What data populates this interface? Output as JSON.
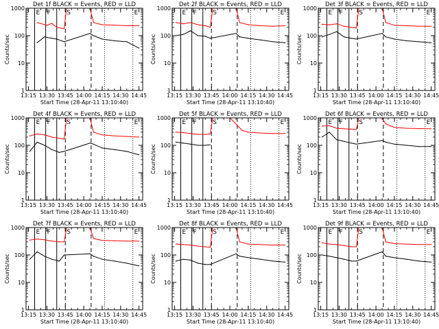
{
  "figure": {
    "ylabel": "Counts/sec",
    "xlabel": "Start Time (28-Apr-11 13:10:40)",
    "tick_labels": [
      "13:15",
      "13:30",
      "13:45",
      "14:00",
      "14:15",
      "14:30",
      "14:45"
    ],
    "y_tick_labels": [
      "1",
      "10",
      "100",
      "1000"
    ],
    "marker_labels": [
      "E",
      "F",
      "S",
      "E"
    ],
    "colors": {
      "events": "#000000",
      "lld": "#ff0000",
      "axes": "#000000"
    }
  },
  "chart_data": [
    {
      "type": "line",
      "title": "Det 1f BLACK = Events, RED = LLD",
      "xlabel": "Start Time (28-Apr-11 13:10:40)",
      "ylabel": "Counts/sec",
      "x_range": [
        "13:13",
        "14:48"
      ],
      "ylim": [
        1,
        1000
      ],
      "y_scale": "log",
      "markers": {
        "solid": [
          "13:20",
          "13:29",
          "13:38"
        ],
        "dashed": [
          "13:45",
          "14:06"
        ],
        "dotted": [
          "14:17",
          "14:40"
        ]
      },
      "gaps": [
        [
          "13:47",
          "14:05"
        ]
      ],
      "series": [
        {
          "key": "events",
          "color": "#000000",
          "x": [
            "13:22",
            "13:28",
            "13:34",
            "13:38",
            "13:44",
            "14:05",
            "14:08",
            "14:15",
            "14:25",
            "14:35",
            "14:45"
          ],
          "y": [
            55,
            90,
            80,
            75,
            60,
            120,
            100,
            75,
            65,
            60,
            35
          ]
        },
        {
          "key": "lld",
          "color": "#ff0000",
          "x": [
            "13:22",
            "13:30",
            "13:34",
            "13:38",
            "13:44",
            "13:46",
            "14:05",
            "14:08",
            "14:15",
            "14:25",
            "14:35",
            "14:45"
          ],
          "y": [
            300,
            240,
            280,
            200,
            180,
            1000,
            1000,
            300,
            250,
            240,
            230,
            230
          ]
        }
      ]
    },
    {
      "type": "line",
      "title": "Det 2f BLACK = Events, RED = LLD",
      "xlabel": "Start Time (28-Apr-11 13:10:40)",
      "ylabel": "Counts/sec",
      "x_range": [
        "13:13",
        "14:48"
      ],
      "ylim": [
        1,
        1000
      ],
      "y_scale": "log",
      "markers": {
        "solid": [
          "13:20",
          "13:29",
          "13:38"
        ],
        "dashed": [
          "13:45",
          "14:06"
        ],
        "dotted": [
          "14:17",
          "14:40"
        ]
      },
      "gaps": [
        [
          "13:47",
          "14:05"
        ]
      ],
      "series": [
        {
          "key": "events",
          "color": "#000000",
          "x": [
            "13:16",
            "13:22",
            "13:28",
            "13:34",
            "13:40",
            "13:44",
            "14:05",
            "14:08",
            "14:15",
            "14:25",
            "14:35",
            "14:45"
          ],
          "y": [
            100,
            110,
            150,
            100,
            95,
            80,
            120,
            90,
            80,
            70,
            60,
            55
          ]
        },
        {
          "key": "lld",
          "color": "#ff0000",
          "x": [
            "13:16",
            "13:22",
            "13:28",
            "13:34",
            "13:40",
            "13:44",
            "13:46",
            "14:05",
            "14:08",
            "14:15",
            "14:25",
            "14:35",
            "14:45"
          ],
          "y": [
            300,
            270,
            300,
            250,
            230,
            200,
            1000,
            1000,
            300,
            250,
            230,
            220,
            230
          ]
        }
      ]
    },
    {
      "type": "line",
      "title": "Det 3f BLACK = Events, RED = LLD",
      "xlabel": "Start Time (28-Apr-11 13:10:40)",
      "ylabel": "Counts/sec",
      "x_range": [
        "13:13",
        "14:48"
      ],
      "ylim": [
        1,
        1000
      ],
      "y_scale": "log",
      "markers": {
        "solid": [
          "13:20",
          "13:29",
          "13:38"
        ],
        "dashed": [
          "13:45",
          "14:06"
        ],
        "dotted": [
          "14:17",
          "14:40"
        ]
      },
      "gaps": [
        [
          "13:47",
          "14:05"
        ]
      ],
      "series": [
        {
          "key": "events",
          "color": "#000000",
          "x": [
            "13:16",
            "13:22",
            "13:28",
            "13:34",
            "13:40",
            "13:44",
            "14:05",
            "14:08",
            "14:15",
            "14:25",
            "14:35",
            "14:45"
          ],
          "y": [
            90,
            110,
            140,
            90,
            80,
            75,
            120,
            90,
            75,
            65,
            60,
            55
          ]
        },
        {
          "key": "lld",
          "color": "#ff0000",
          "x": [
            "13:16",
            "13:22",
            "13:28",
            "13:34",
            "13:40",
            "13:44",
            "13:46",
            "14:05",
            "14:08",
            "14:15",
            "14:25",
            "14:35",
            "14:45"
          ],
          "y": [
            260,
            250,
            270,
            220,
            200,
            190,
            1000,
            1000,
            300,
            240,
            230,
            220,
            220
          ]
        }
      ]
    },
    {
      "type": "line",
      "title": "Det 4f BLACK = Events, RED = LLD",
      "xlabel": "Start Time (28-Apr-11 13:10:40)",
      "ylabel": "Counts/sec",
      "x_range": [
        "13:13",
        "14:48"
      ],
      "ylim": [
        1,
        1000
      ],
      "y_scale": "log",
      "markers": {
        "solid": [
          "13:20",
          "13:29",
          "13:38"
        ],
        "dashed": [
          "13:45",
          "14:06"
        ],
        "dotted": [
          "14:17",
          "14:40"
        ]
      },
      "gaps": [
        [
          "13:47",
          "14:05"
        ]
      ],
      "series": [
        {
          "key": "events",
          "color": "#000000",
          "x": [
            "13:16",
            "13:22",
            "13:28",
            "13:34",
            "13:40",
            "13:44",
            "14:05",
            "14:08",
            "14:15",
            "14:25",
            "14:35",
            "14:45"
          ],
          "y": [
            60,
            130,
            100,
            70,
            55,
            60,
            120,
            110,
            80,
            70,
            60,
            45
          ]
        },
        {
          "key": "lld",
          "color": "#ff0000",
          "x": [
            "13:16",
            "13:22",
            "13:28",
            "13:34",
            "13:40",
            "13:44",
            "13:46",
            "14:05",
            "14:08",
            "14:15",
            "14:25",
            "14:35",
            "14:45"
          ],
          "y": [
            220,
            260,
            240,
            200,
            180,
            170,
            1000,
            1000,
            300,
            240,
            220,
            210,
            200
          ]
        }
      ]
    },
    {
      "type": "line",
      "title": "Det 5f BLACK = Events, RED = LLD",
      "xlabel": "Start Time (28-Apr-11 13:10:40)",
      "ylabel": "Counts/sec",
      "x_range": [
        "13:13",
        "14:48"
      ],
      "ylim": [
        1,
        1000
      ],
      "y_scale": "log",
      "markers": {
        "solid": [
          "13:20",
          "13:29",
          "13:38"
        ],
        "dashed": [
          "13:45",
          "14:06"
        ],
        "dotted": [
          "14:17",
          "14:40"
        ]
      },
      "gaps": [],
      "series": [
        {
          "key": "events",
          "color": "#000000",
          "x": [
            "13:16",
            "13:22",
            "13:28",
            "13:34",
            "13:40",
            "13:44"
          ],
          "y": [
            130,
            120,
            110,
            100,
            100,
            105
          ]
        },
        {
          "key": "lld",
          "color": "#ff0000",
          "x": [
            "13:16",
            "13:22",
            "13:28",
            "13:34",
            "13:40",
            "13:44",
            "13:46",
            "14:00",
            "14:05",
            "14:10",
            "14:15",
            "14:25",
            "14:35",
            "14:45"
          ],
          "y": [
            300,
            290,
            270,
            250,
            250,
            260,
            1000,
            1000,
            600,
            350,
            300,
            280,
            270,
            270
          ]
        }
      ]
    },
    {
      "type": "line",
      "title": "Det 6f BLACK = Events, RED = LLD",
      "xlabel": "Start Time (28-Apr-11 13:10:40)",
      "ylabel": "Counts/sec",
      "x_range": [
        "13:13",
        "14:48"
      ],
      "ylim": [
        1,
        1000
      ],
      "y_scale": "log",
      "markers": {
        "solid": [
          "13:20",
          "13:29",
          "13:38"
        ],
        "dashed": [
          "13:45",
          "14:06"
        ],
        "dotted": [
          "14:17",
          "14:40"
        ]
      },
      "gaps": [
        [
          "13:47",
          "14:05"
        ]
      ],
      "series": [
        {
          "key": "events",
          "color": "#000000",
          "x": [
            "13:16",
            "13:22",
            "13:28",
            "13:34",
            "13:40",
            "13:44",
            "14:05",
            "14:08",
            "14:15",
            "14:25",
            "14:35",
            "14:45"
          ],
          "y": [
            200,
            300,
            160,
            140,
            120,
            110,
            150,
            130,
            110,
            100,
            90,
            90
          ]
        },
        {
          "key": "lld",
          "color": "#ff0000",
          "x": [
            "13:16",
            "13:22",
            "13:28",
            "13:34",
            "13:40",
            "13:44",
            "13:46",
            "14:05",
            "14:08",
            "14:15",
            "14:25",
            "14:35",
            "14:45"
          ],
          "y": [
            500,
            520,
            420,
            400,
            390,
            380,
            1000,
            1000,
            600,
            450,
            420,
            410,
            400
          ]
        }
      ]
    },
    {
      "type": "line",
      "title": "Det 7f BLACK = Events, RED = LLD",
      "xlabel": "Start Time (28-Apr-11 13:10:40)",
      "ylabel": "Counts/sec",
      "x_range": [
        "13:13",
        "14:48"
      ],
      "ylim": [
        1,
        1000
      ],
      "y_scale": "log",
      "markers": {
        "solid": [
          "13:20",
          "13:29",
          "13:38"
        ],
        "dashed": [
          "13:45",
          "14:06"
        ],
        "dotted": [
          "14:17",
          "14:40"
        ]
      },
      "gaps": [
        [
          "13:47",
          "14:05"
        ]
      ],
      "series": [
        {
          "key": "events",
          "color": "#000000",
          "x": [
            "13:16",
            "13:22",
            "13:28",
            "13:34",
            "13:40",
            "13:44",
            "14:05",
            "14:08",
            "14:15",
            "14:25",
            "14:35",
            "14:45"
          ],
          "y": [
            70,
            130,
            90,
            70,
            60,
            100,
            110,
            90,
            70,
            60,
            50,
            40
          ]
        },
        {
          "key": "lld",
          "color": "#ff0000",
          "x": [
            "13:16",
            "13:22",
            "13:28",
            "13:34",
            "13:40",
            "13:44",
            "13:46",
            "14:05",
            "14:08",
            "14:15",
            "14:25",
            "14:35",
            "14:45"
          ],
          "y": [
            350,
            380,
            360,
            320,
            300,
            300,
            1000,
            1000,
            400,
            340,
            330,
            320,
            320
          ]
        }
      ]
    },
    {
      "type": "line",
      "title": "Det 8f BLACK = Events, RED = LLD",
      "xlabel": "Start Time (28-Apr-11 13:10:40)",
      "ylabel": "Counts/sec",
      "x_range": [
        "13:13",
        "14:48"
      ],
      "ylim": [
        1,
        1000
      ],
      "y_scale": "log",
      "markers": {
        "solid": [
          "13:20",
          "13:29",
          "13:38"
        ],
        "dashed": [
          "13:45",
          "14:06"
        ],
        "dotted": [
          "14:17",
          "14:40"
        ]
      },
      "gaps": [
        [
          "13:47",
          "14:05"
        ]
      ],
      "series": [
        {
          "key": "events",
          "color": "#000000",
          "x": [
            "13:16",
            "13:22",
            "13:28",
            "13:34",
            "13:40",
            "13:44",
            "14:05",
            "14:08",
            "14:15",
            "14:25",
            "14:35",
            "14:45"
          ],
          "y": [
            60,
            70,
            65,
            50,
            45,
            45,
            110,
            90,
            80,
            70,
            60,
            55
          ]
        },
        {
          "key": "lld",
          "color": "#ff0000",
          "x": [
            "13:16",
            "13:22",
            "13:28",
            "13:34",
            "13:40",
            "13:44",
            "13:46",
            "14:05",
            "14:08",
            "14:15",
            "14:25",
            "14:35",
            "14:45"
          ],
          "y": [
            250,
            240,
            230,
            210,
            200,
            190,
            1000,
            1000,
            300,
            250,
            240,
            230,
            230
          ]
        }
      ]
    },
    {
      "type": "line",
      "title": "Det 9f BLACK = Events, RED = LLD",
      "xlabel": "Start Time (28-Apr-11 13:10:40)",
      "ylabel": "Counts/sec",
      "x_range": [
        "13:13",
        "14:48"
      ],
      "ylim": [
        1,
        1000
      ],
      "y_scale": "log",
      "markers": {
        "solid": [
          "13:20",
          "13:29",
          "13:38"
        ],
        "dashed": [
          "13:45",
          "14:06"
        ],
        "dotted": [
          "14:17",
          "14:40"
        ]
      },
      "gaps": [
        [
          "13:47",
          "14:05"
        ]
      ],
      "series": [
        {
          "key": "events",
          "color": "#000000",
          "x": [
            "13:16",
            "13:22",
            "13:28",
            "13:34",
            "13:40",
            "13:44",
            "14:05",
            "14:08",
            "14:15",
            "14:25",
            "14:35",
            "14:45"
          ],
          "y": [
            100,
            90,
            80,
            70,
            60,
            60,
            130,
            90,
            80,
            70,
            60,
            55
          ]
        },
        {
          "key": "lld",
          "color": "#ff0000",
          "x": [
            "13:16",
            "13:22",
            "13:28",
            "13:34",
            "13:40",
            "13:44",
            "13:46",
            "14:05",
            "14:08",
            "14:15",
            "14:25",
            "14:35",
            "14:45"
          ],
          "y": [
            280,
            250,
            240,
            220,
            200,
            200,
            1000,
            1000,
            300,
            260,
            250,
            240,
            240
          ]
        }
      ]
    }
  ]
}
